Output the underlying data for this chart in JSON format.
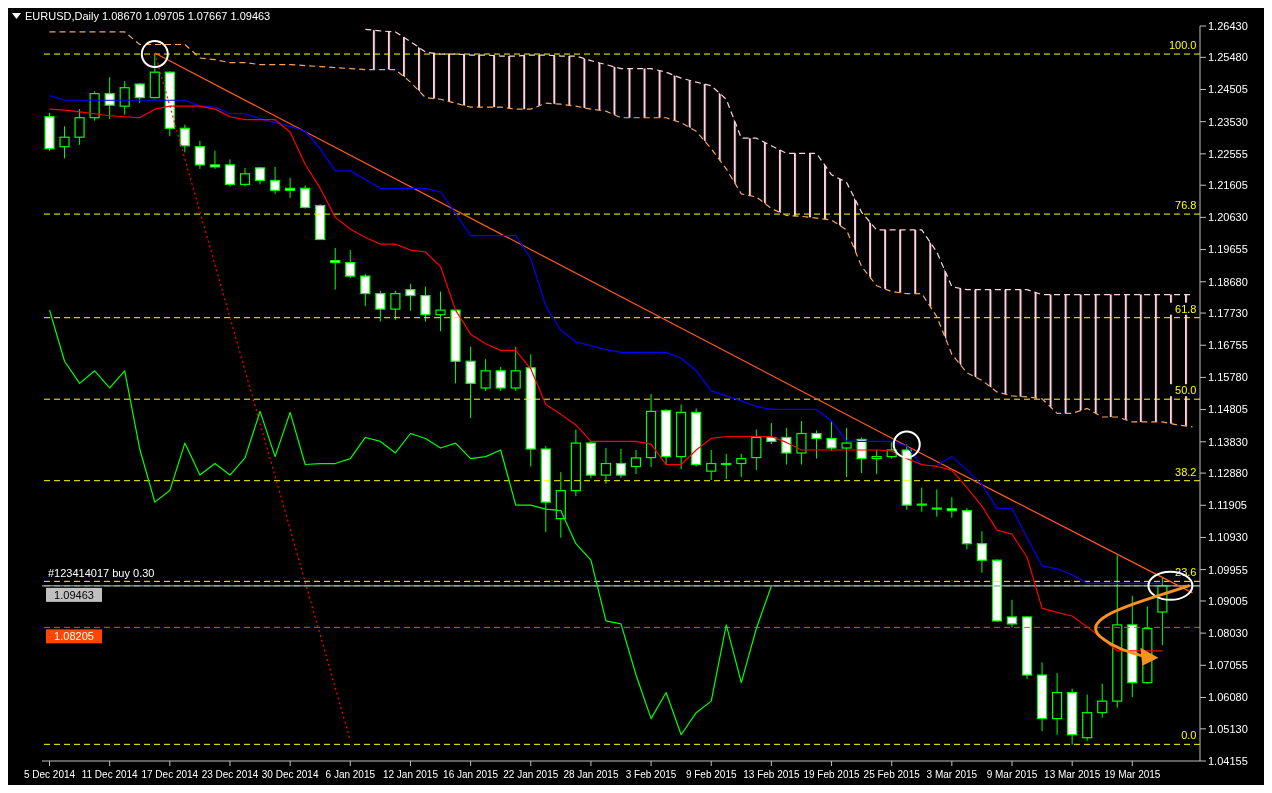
{
  "chart_data": {
    "type": "candlestick",
    "title": "EURUSD,Daily 1.08670 1.09705 1.07667 1.09463",
    "color": "#00ff00",
    "categories": [
      "5 Dec 2014",
      null,
      null,
      null,
      "11 Dec 2014",
      null,
      null,
      null,
      "17 Dec 2014",
      null,
      null,
      null,
      "23 Dec 2014",
      null,
      null,
      null,
      "30 Dec 2014",
      null,
      null,
      null,
      "6 Jan 2015",
      null,
      null,
      null,
      "12 Jan 2015",
      null,
      null,
      null,
      "16 Jan 2015",
      null,
      null,
      null,
      "22 Jan 2015",
      null,
      null,
      null,
      "28 Jan 2015",
      null,
      null,
      null,
      "3 Feb 2015",
      null,
      null,
      null,
      "9 Feb 2015",
      null,
      null,
      null,
      "13 Feb 2015",
      null,
      null,
      null,
      "19 Feb 2015",
      null,
      null,
      null,
      "25 Feb 2015",
      null,
      null,
      null,
      "3 Mar 2015",
      null,
      null,
      null,
      "9 Mar 2015",
      null,
      null,
      null,
      "13 Mar 2015",
      null,
      null,
      null,
      "19 Mar 2015",
      null,
      null,
      null,
      null
    ],
    "ohlc": [
      [
        1.2368,
        1.238,
        1.2265,
        1.2271
      ],
      [
        1.2277,
        1.2339,
        1.2242,
        1.2306
      ],
      [
        1.2306,
        1.2391,
        1.2283,
        1.2365
      ],
      [
        1.2365,
        1.2445,
        1.2356,
        1.2438
      ],
      [
        1.2438,
        1.2488,
        1.2362,
        1.2403
      ],
      [
        1.24,
        1.2476,
        1.2374,
        1.2456
      ],
      [
        1.2467,
        1.247,
        1.2409,
        1.2426
      ],
      [
        1.2426,
        1.2558,
        1.2424,
        1.2503
      ],
      [
        1.2503,
        1.2506,
        1.2309,
        1.2333
      ],
      [
        1.2333,
        1.2344,
        1.226,
        1.228
      ],
      [
        1.2277,
        1.2295,
        1.221,
        1.2222
      ],
      [
        1.2222,
        1.2265,
        1.221,
        1.2216
      ],
      [
        1.2222,
        1.2239,
        1.2157,
        1.2163
      ],
      [
        1.2163,
        1.2213,
        1.2157,
        1.2195
      ],
      [
        1.2213,
        1.2216,
        1.2163,
        1.2175
      ],
      [
        1.2175,
        1.2216,
        1.2134,
        1.2145
      ],
      [
        1.2151,
        1.2183,
        1.2122,
        1.2145
      ],
      [
        1.2151,
        1.216,
        1.209,
        1.2093
      ],
      [
        1.2099,
        1.2102,
        1.1996,
        1.1996
      ],
      [
        1.1932,
        1.197,
        1.1844,
        1.1926
      ],
      [
        1.1926,
        1.1964,
        1.1879,
        1.1885
      ],
      [
        1.1885,
        1.1891,
        1.1794,
        1.1832
      ],
      [
        1.1832,
        1.1841,
        1.1747,
        1.1785
      ],
      [
        1.1785,
        1.1841,
        1.1753,
        1.1832
      ],
      [
        1.1844,
        1.1862,
        1.178,
        1.1826
      ],
      [
        1.1826,
        1.1853,
        1.1747,
        1.1768
      ],
      [
        1.1768,
        1.1838,
        1.1718,
        1.1782
      ],
      [
        1.1782,
        1.1782,
        1.156,
        1.1627
      ],
      [
        1.1627,
        1.1671,
        1.1455,
        1.156
      ],
      [
        1.1546,
        1.1633,
        1.1537,
        1.1598
      ],
      [
        1.1598,
        1.161,
        1.1537,
        1.1546
      ],
      [
        1.1546,
        1.1671,
        1.1537,
        1.1598
      ],
      [
        1.1607,
        1.1648,
        1.1308,
        1.1361
      ],
      [
        1.1361,
        1.137,
        1.1109,
        1.12
      ],
      [
        1.115,
        1.1291,
        1.1092,
        1.1235
      ],
      [
        1.1235,
        1.142,
        1.1218,
        1.1379
      ],
      [
        1.1379,
        1.1385,
        1.1273,
        1.1282
      ],
      [
        1.1282,
        1.1364,
        1.1256,
        1.1317
      ],
      [
        1.1317,
        1.1361,
        1.1273,
        1.1282
      ],
      [
        1.1308,
        1.1358,
        1.1285,
        1.1334
      ],
      [
        1.1335,
        1.1528,
        1.1306,
        1.1475
      ],
      [
        1.1478,
        1.1481,
        1.1314,
        1.1338
      ],
      [
        1.1338,
        1.1496,
        1.13,
        1.1472
      ],
      [
        1.1472,
        1.1484,
        1.1308,
        1.1314
      ],
      [
        1.1294,
        1.1358,
        1.1267,
        1.1317
      ],
      [
        1.1314,
        1.1346,
        1.127,
        1.1317
      ],
      [
        1.1317,
        1.1346,
        1.1276,
        1.1332
      ],
      [
        1.1335,
        1.142,
        1.1297,
        1.1396
      ],
      [
        1.1396,
        1.144,
        1.1376,
        1.1384
      ],
      [
        1.1396,
        1.1425,
        1.1314,
        1.1349
      ],
      [
        1.1349,
        1.1446,
        1.1314,
        1.1408
      ],
      [
        1.1408,
        1.1417,
        1.1332,
        1.1393
      ],
      [
        1.1393,
        1.1446,
        1.1355,
        1.1364
      ],
      [
        1.1364,
        1.1425,
        1.1276,
        1.1379
      ],
      [
        1.139,
        1.1396,
        1.1288,
        1.1332
      ],
      [
        1.1332,
        1.1358,
        1.1285,
        1.1338
      ],
      [
        1.1338,
        1.1381,
        1.1332,
        1.1358
      ],
      [
        1.1358,
        1.1375,
        1.1177,
        1.1191
      ],
      [
        1.1194,
        1.1244,
        1.1171,
        1.1191
      ],
      [
        1.1182,
        1.1238,
        1.1156,
        1.1179
      ],
      [
        1.118,
        1.1215,
        1.1153,
        1.1174
      ],
      [
        1.1174,
        1.1182,
        1.1057,
        1.1074
      ],
      [
        1.1074,
        1.1112,
        1.0986,
        1.1024
      ],
      [
        1.1024,
        1.1027,
        1.0837,
        1.084
      ],
      [
        1.0852,
        1.0904,
        1.082,
        1.0831
      ],
      [
        1.0852,
        1.0855,
        1.0664,
        1.0676
      ],
      [
        1.0676,
        1.0714,
        1.0506,
        1.0544
      ],
      [
        1.0544,
        1.0682,
        1.0495,
        1.0623
      ],
      [
        1.0623,
        1.0635,
        1.0465,
        1.0495
      ],
      [
        1.0486,
        1.0617,
        1.0477,
        1.0562
      ],
      [
        1.0562,
        1.065,
        1.0547,
        1.0597
      ],
      [
        1.0597,
        1.1039,
        1.0577,
        1.0828
      ],
      [
        1.0828,
        1.0916,
        1.0609,
        1.0653
      ],
      [
        1.0653,
        1.0884,
        1.065,
        1.0817
      ],
      [
        1.0867,
        1.09705,
        1.07667,
        1.09463
      ],
      null,
      null
    ],
    "series": [
      {
        "type": "line",
        "color": "#ffd0e0",
        "line_style": "dashed",
        "lower": [
          null,
          null,
          null,
          null,
          null,
          null,
          null,
          null,
          null,
          null,
          null,
          null,
          null,
          null,
          null,
          null,
          null,
          null,
          null,
          null,
          null,
          1.2511,
          1.2511,
          1.2511,
          1.2473,
          1.2426,
          1.2421,
          1.2409,
          1.2397,
          1.2397,
          1.2397,
          1.2391,
          1.2391,
          1.2409,
          1.2406,
          1.24,
          1.2391,
          1.2385,
          1.2365,
          1.2365,
          1.2365,
          1.2365,
          1.235,
          1.2324,
          1.2271,
          1.221,
          1.2134,
          1.2125,
          1.209,
          1.2069,
          1.2066,
          1.2061,
          1.2055,
          1.2025,
          1.1914,
          1.1856,
          1.1838,
          1.1832,
          1.1832,
          1.1762,
          1.1648,
          1.1592,
          1.1569,
          1.1534,
          1.1522,
          1.1519,
          1.1513,
          1.1469,
          1.1469,
          1.1484,
          1.1458,
          1.1458,
          1.1443,
          1.1443,
          1.1443,
          1.1434,
          1.1428
        ],
        "upper": [
          null,
          null,
          null,
          null,
          null,
          null,
          null,
          null,
          null,
          null,
          null,
          null,
          null,
          null,
          null,
          null,
          null,
          null,
          null,
          null,
          null,
          1.2633,
          1.2628,
          1.2625,
          1.2596,
          1.2564,
          1.2558,
          1.2558,
          1.2555,
          1.2555,
          1.2552,
          1.2552,
          1.2555,
          1.2555,
          1.2552,
          1.2552,
          1.2538,
          1.2526,
          1.2514,
          1.2514,
          1.2514,
          1.2503,
          1.2485,
          1.2473,
          1.2462,
          1.2421,
          1.2303,
          1.2303,
          1.228,
          1.2257,
          1.2257,
          1.2257,
          1.2192,
          1.2169,
          1.2078,
          1.2025,
          1.2025,
          1.2025,
          1.2025,
          1.1958,
          1.1853,
          1.1844,
          1.1844,
          1.1844,
          1.1844,
          1.1844,
          1.1829,
          1.1829,
          1.1829,
          1.1829,
          1.1829,
          1.1829,
          1.1829,
          1.1829,
          1.1829,
          1.1829,
          1.1829
        ],
        "values": [
          null,
          null,
          null,
          null,
          null,
          null,
          null,
          null,
          null,
          null,
          null,
          null,
          null,
          null,
          null,
          null,
          null,
          null,
          null,
          null,
          null,
          1.2633,
          1.2628,
          1.2625,
          1.2596,
          1.2564,
          1.2558,
          1.2558,
          1.2555,
          1.2555,
          1.2552,
          1.2552,
          1.2555,
          1.2555,
          1.2552,
          1.2552,
          1.2538,
          1.2526,
          1.2514,
          1.2514,
          1.2514,
          1.2503,
          1.2485,
          1.2473,
          1.2462,
          1.2421,
          1.2303,
          1.2303,
          1.228,
          1.2257,
          1.2257,
          1.2257,
          1.2192,
          1.2169,
          1.2078,
          1.2025,
          1.2025,
          1.2025,
          1.2025,
          1.1958,
          1.1853,
          1.1844,
          1.1844,
          1.1844,
          1.1844,
          1.1844,
          1.1829,
          1.1829,
          1.1829,
          1.1829,
          1.1829,
          1.1829,
          1.1829,
          1.1829,
          1.1829,
          1.1829,
          1.1829
        ]
      },
      {
        "type": "line",
        "color": "#f4a460",
        "line_style": "dashed",
        "values": [
          1.2625,
          1.2625,
          1.2625,
          1.2625,
          1.2625,
          1.2625,
          1.2587,
          1.2587,
          1.2587,
          1.2587,
          1.2546,
          1.2541,
          1.2532,
          1.2532,
          1.2526,
          1.2526,
          1.2526,
          1.2523,
          1.252,
          1.2517,
          1.2514,
          1.2511,
          1.2511,
          1.2511,
          1.2473,
          1.2426,
          1.2421,
          1.2409,
          1.2397,
          1.2397,
          1.2397,
          1.2391,
          1.2391,
          1.2409,
          1.2406,
          1.24,
          1.2391,
          1.2385,
          1.2365,
          1.2365,
          1.2365,
          1.2365,
          1.235,
          1.2324,
          1.2271,
          1.221,
          1.2134,
          1.2125,
          1.209,
          1.2069,
          1.2066,
          1.2061,
          1.2055,
          1.2025,
          1.1914,
          1.1856,
          1.1838,
          1.1832,
          1.1832,
          1.1762,
          1.1648,
          1.1592,
          1.1569,
          1.1534,
          1.1522,
          1.1519,
          1.1513,
          1.1469,
          1.1469,
          1.1484,
          1.1458,
          1.1458,
          1.1443,
          1.1443,
          1.1443,
          1.1434,
          1.1428
        ]
      },
      {
        "type": "line",
        "color": "#ff0000",
        "line_style": "dotted",
        "values": [
          null,
          null,
          null,
          null,
          null,
          null,
          null,
          1.2561,
          null,
          null,
          null,
          null,
          null,
          null,
          null,
          null,
          null,
          null,
          null,
          null,
          1.0477,
          null,
          null,
          null,
          null,
          null,
          null,
          null,
          null,
          null,
          null,
          null,
          null,
          null,
          null,
          null,
          null,
          null,
          null,
          null,
          null,
          null,
          null,
          null,
          null,
          null,
          null,
          null,
          null,
          null,
          null,
          null,
          null,
          null,
          null,
          null,
          null,
          null,
          null,
          null,
          null,
          null,
          null,
          null,
          null,
          null,
          null,
          null,
          null,
          null,
          null,
          null,
          null,
          null,
          null,
          null,
          null
        ]
      },
      {
        "type": "line",
        "color": "#ff5a1e",
        "values": [
          null,
          null,
          null,
          null,
          null,
          null,
          null,
          1.2561,
          null,
          null,
          null,
          null,
          null,
          null,
          null,
          null,
          null,
          null,
          null,
          null,
          null,
          null,
          null,
          null,
          null,
          null,
          null,
          null,
          null,
          null,
          null,
          null,
          null,
          null,
          null,
          null,
          null,
          null,
          null,
          null,
          null,
          null,
          null,
          null,
          null,
          null,
          null,
          null,
          null,
          null,
          null,
          null,
          null,
          null,
          null,
          null,
          null,
          1.137,
          null,
          null,
          null,
          null,
          null,
          null,
          null,
          null,
          null,
          null,
          null,
          null,
          null,
          null,
          null,
          null,
          null,
          null,
          1.0925
        ]
      },
      {
        "type": "line",
        "color": "#00ff00",
        "values": [
          1.1782,
          1.1627,
          1.156,
          1.1598,
          1.1546,
          1.1598,
          1.1361,
          1.12,
          1.1235,
          1.1379,
          1.1282,
          1.1317,
          1.1282,
          1.1334,
          1.1475,
          1.1338,
          1.1472,
          1.1314,
          1.1317,
          1.1317,
          1.1332,
          1.1396,
          1.1384,
          1.1349,
          1.1408,
          1.1393,
          1.1364,
          1.1379,
          1.1332,
          1.1338,
          1.1358,
          1.1191,
          1.1191,
          1.1179,
          1.1174,
          1.1074,
          1.1024,
          1.084,
          1.0831,
          1.0676,
          1.0544,
          1.0623,
          1.0495,
          1.0562,
          1.0597,
          1.0828,
          1.0653,
          1.0817,
          1.0946,
          null,
          null,
          null,
          null,
          null,
          null,
          null,
          null,
          null,
          null,
          null,
          null,
          null,
          null,
          null,
          null,
          null,
          null,
          null,
          null,
          null,
          null,
          null,
          null,
          null,
          null,
          null,
          null
        ]
      },
      {
        "type": "line",
        "color": "#0000ff",
        "values": [
          1.2432,
          1.2418,
          1.2418,
          1.2418,
          1.2418,
          1.2418,
          1.2418,
          1.2418,
          1.2418,
          1.2418,
          1.24,
          1.2397,
          1.2377,
          1.2377,
          1.2362,
          1.235,
          1.2339,
          1.2324,
          1.2271,
          1.2204,
          1.2204,
          1.2178,
          1.2151,
          1.2151,
          1.2151,
          1.2151,
          1.214,
          1.2075,
          1.2008,
          1.2008,
          1.2008,
          1.2008,
          1.1938,
          1.1794,
          1.1721,
          1.1686,
          1.1674,
          1.1662,
          1.1654,
          1.1654,
          1.1654,
          1.1654,
          1.1636,
          1.1598,
          1.1537,
          1.1522,
          1.1507,
          1.149,
          1.1481,
          1.1481,
          1.1481,
          1.1481,
          1.1446,
          1.1384,
          1.1384,
          1.1384,
          1.1384,
          1.137,
          1.1311,
          1.1311,
          1.1338,
          1.1297,
          1.1253,
          1.1182,
          1.118,
          1.1092,
          1.1007,
          1.0998,
          1.098,
          1.0954,
          1.0954,
          1.0954,
          1.0954,
          1.0954,
          1.0954,
          null,
          null
        ]
      },
      {
        "type": "line",
        "color": "#ff0000",
        "values": [
          1.2391,
          1.2388,
          1.2383,
          1.2377,
          1.2371,
          1.2368,
          1.2365,
          1.2391,
          1.24,
          1.24,
          1.24,
          1.2391,
          1.2368,
          1.2359,
          1.2359,
          1.2359,
          1.2321,
          1.2224,
          1.2151,
          1.2063,
          1.2028,
          1.2002,
          1.1982,
          1.1982,
          1.1964,
          1.1958,
          1.1914,
          1.1782,
          1.1709,
          1.168,
          1.166,
          1.166,
          1.1604,
          1.1496,
          1.1466,
          1.1434,
          1.1384,
          1.1384,
          1.1384,
          1.1384,
          1.1376,
          1.1314,
          1.1314,
          1.1358,
          1.1393,
          1.1399,
          1.1399,
          1.1399,
          1.1399,
          1.1381,
          1.1358,
          1.1358,
          1.1358,
          1.1358,
          1.1358,
          1.1358,
          1.1355,
          1.1332,
          1.1314,
          1.1308,
          1.1297,
          1.1244,
          1.1188,
          1.1115,
          1.1103,
          1.1033,
          1.0878,
          1.0866,
          1.0855,
          1.0822,
          1.0787,
          1.0749,
          1.0749,
          1.0749,
          1.0749,
          null,
          null
        ]
      }
    ],
    "ylim": [
      1.04155,
      1.2643
    ],
    "yticks": [
      {
        "value": 1.04155,
        "label": "1.04155"
      },
      {
        "value": 1.0513,
        "label": "1.05130"
      },
      {
        "value": 1.0608,
        "label": "1.06080"
      },
      {
        "value": 1.07055,
        "label": "1.07055"
      },
      {
        "value": 1.0803,
        "label": "1.08030"
      },
      {
        "value": 1.09005,
        "label": "1.09005"
      },
      {
        "value": 1.09955,
        "label": "1.09955"
      },
      {
        "value": 1.1093,
        "label": "1.10930"
      },
      {
        "value": 1.11905,
        "label": "1.11905"
      },
      {
        "value": 1.1288,
        "label": "1.12880"
      },
      {
        "value": 1.1383,
        "label": "1.13830"
      },
      {
        "value": 1.14805,
        "label": "1.14805"
      },
      {
        "value": 1.1578,
        "label": "1.15780"
      },
      {
        "value": 1.16755,
        "label": "1.16755"
      },
      {
        "value": 1.1773,
        "label": "1.17730"
      },
      {
        "value": 1.1868,
        "label": "1.18680"
      },
      {
        "value": 1.19655,
        "label": "1.19655"
      },
      {
        "value": 1.2063,
        "label": "1.20630"
      },
      {
        "value": 1.21605,
        "label": "1.21605"
      },
      {
        "value": 1.22555,
        "label": "1.22555"
      },
      {
        "value": 1.2353,
        "label": "1.23530"
      },
      {
        "value": 1.24505,
        "label": "1.24505"
      },
      {
        "value": 1.2548,
        "label": "1.25480"
      },
      {
        "value": 1.2643,
        "label": "1.26430"
      }
    ],
    "ref_lines": [
      {
        "axis": "y",
        "value": 1.2558,
        "color": "#ffff00",
        "line_style": "dashed"
      },
      {
        "axis": "y",
        "value": 1.2073,
        "color": "#ffff00",
        "line_style": "dashed"
      },
      {
        "axis": "y",
        "value": 1.1759,
        "color": "#ffff00",
        "line_style": "dashed"
      },
      {
        "axis": "y",
        "value": 1.1512,
        "color": "#ffff00",
        "line_style": "dashed"
      },
      {
        "axis": "y",
        "value": 1.1265,
        "color": "#ffff00",
        "line_style": "dashed"
      },
      {
        "axis": "y",
        "value": 1.096,
        "color": "#ffff00",
        "line_style": "dashed"
      },
      {
        "axis": "y",
        "value": 1.0466,
        "color": "#ffff00",
        "line_style": "dashed"
      },
      {
        "axis": "y",
        "value": 1.0946,
        "label": "#123414017 buy 0.30",
        "color": "#3cb371",
        "line_style": "dashed"
      },
      {
        "axis": "y",
        "value": 1.09463,
        "label": "1.09463",
        "color": "#c0c0c0",
        "line_style": "solid"
      },
      {
        "axis": "y",
        "value": 1.08205,
        "label": "1.08205",
        "color": "#ff4500",
        "line_style": "dashed"
      }
    ],
    "annotations": [
      {
        "text": "100.0",
        "y": 1.2558
      },
      {
        "text": "76.8",
        "y": 1.2073
      },
      {
        "text": "61.8",
        "y": 1.1759
      },
      {
        "text": "50.0",
        "y": 1.1512
      },
      {
        "text": "38.2",
        "y": 1.1265
      },
      {
        "text": "23.6",
        "y": 1.096
      },
      {
        "text": "0.0",
        "y": 1.0466
      }
    ]
  }
}
